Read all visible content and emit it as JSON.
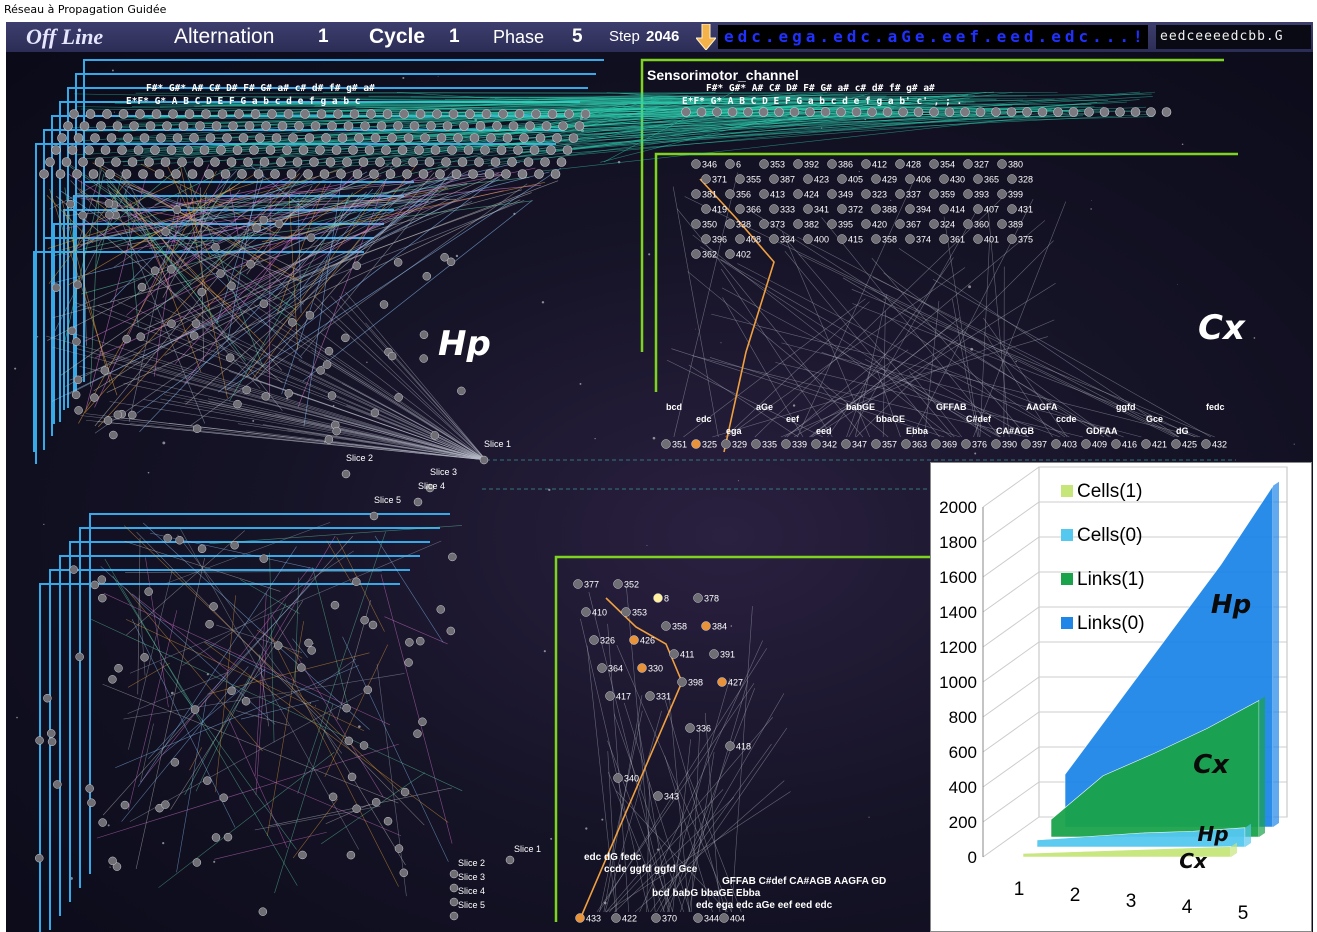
{
  "window": {
    "title": "Réseau à Propagation Guidée"
  },
  "toolbar": {
    "mode": "Off Line",
    "alternation_label": "Alternation",
    "alternation_value": "1",
    "cycle_label": "Cycle",
    "cycle_value": "1",
    "phase_label": "Phase",
    "phase_value": "5",
    "step_label": "Step",
    "step_value": "2046",
    "arrow_icon": "arrow-down-icon",
    "sequence_display": "edc.ega.edc.aGe.eef.eed.edc...!",
    "sequence_short": "eedceeeedcbb.G"
  },
  "network": {
    "hp_label": "Hp",
    "cx_label": "Cx",
    "sensorimotor_label": "Sensorimotor_channel",
    "note_row_left": "F#*   G#*   A#        C#   D#        F#   G#   a#        c#   d#        f#   g#   a#",
    "note_row_left2": "E*F*  G*   A    B    C    D    E    F    G    a    b    c    d    e    f    g    a    b    c",
    "note_row_right": "F#*  G#*  A#       C#   D#       F#   G#   a#        c#   d#       f#   g#   a#",
    "note_row_right2": "E*F*  G*  A   B   C   D   E   F   G   a   b   c   d   e   f   g   a   b'  c'  ,  ;  .",
    "slices_mid": [
      "Slice 1",
      "Slice 2",
      "Slice 3",
      "Slice 4",
      "Slice 5"
    ],
    "slices_bottom": [
      "Slice 1",
      "Slice 2",
      "Slice 3",
      "Slice 4",
      "Slice 5"
    ],
    "cx_top_nodes": [
      {
        "id": "346"
      },
      {
        "id": "6"
      },
      {
        "id": "353"
      },
      {
        "id": "392"
      },
      {
        "id": "386"
      },
      {
        "id": "412"
      },
      {
        "id": "428"
      },
      {
        "id": "354"
      },
      {
        "id": "327"
      },
      {
        "id": "380"
      },
      {
        "id": "371"
      },
      {
        "id": "355"
      },
      {
        "id": "387"
      },
      {
        "id": "423"
      },
      {
        "id": "405"
      },
      {
        "id": "429"
      },
      {
        "id": "406"
      },
      {
        "id": "430"
      },
      {
        "id": "365"
      },
      {
        "id": "328"
      },
      {
        "id": "381"
      },
      {
        "id": "356"
      },
      {
        "id": "413"
      },
      {
        "id": "424"
      },
      {
        "id": "349"
      },
      {
        "id": "323"
      },
      {
        "id": "337"
      },
      {
        "id": "359"
      },
      {
        "id": "393"
      },
      {
        "id": "399"
      },
      {
        "id": "419"
      },
      {
        "id": "366"
      },
      {
        "id": "333"
      },
      {
        "id": "341"
      },
      {
        "id": "372"
      },
      {
        "id": "388"
      },
      {
        "id": "394"
      },
      {
        "id": "414"
      },
      {
        "id": "407"
      },
      {
        "id": "431"
      },
      {
        "id": "350"
      },
      {
        "id": "338"
      },
      {
        "id": "373"
      },
      {
        "id": "382"
      },
      {
        "id": "395"
      },
      {
        "id": "420"
      },
      {
        "id": "367"
      },
      {
        "id": "324"
      },
      {
        "id": "360"
      },
      {
        "id": "389"
      },
      {
        "id": "396"
      },
      {
        "id": "408"
      },
      {
        "id": "334"
      },
      {
        "id": "400"
      },
      {
        "id": "415"
      },
      {
        "id": "358"
      },
      {
        "id": "374"
      },
      {
        "id": "361"
      },
      {
        "id": "401"
      },
      {
        "id": "375"
      },
      {
        "id": "362"
      },
      {
        "id": "402"
      }
    ],
    "cx_row_labels": [
      "bcd",
      "edc",
      "ega",
      "aGe",
      "eef",
      "eed",
      "babGE",
      "bbaGE",
      "Ebba",
      "GFFAB",
      "C#def",
      "CA#AGB",
      "AAGFA",
      "ccde",
      "GDFAA",
      "ggfd",
      "Gce",
      "dG",
      "fedc"
    ],
    "cx_row_nodes": [
      "351",
      "325",
      "329",
      "335",
      "339",
      "342",
      "347",
      "357",
      "363",
      "369",
      "376",
      "390",
      "397",
      "403",
      "409",
      "416",
      "421",
      "425",
      "432"
    ],
    "bottom_nodes": [
      "377",
      "352",
      "8",
      "378",
      "410",
      "353",
      "358",
      "384",
      "326",
      "426",
      "411",
      "391",
      "364",
      "330",
      "398",
      "427",
      "417",
      "331",
      "336",
      "418",
      "340",
      "343"
    ],
    "bottom_labels": [
      "edc dG fedc",
      "ccde ggfd ggfd Gce",
      "GFFAB C#def CA#AGB AAGFA GD",
      "bcd babG bbaGE Ebba",
      "edc ega edc aGe eef eed edc"
    ],
    "bottom_row_nodes": [
      "433",
      "422",
      "370",
      "344",
      "404"
    ]
  },
  "chart_data": {
    "type": "area",
    "title": "",
    "x": [
      1,
      2,
      3,
      4,
      5
    ],
    "ylim": [
      0,
      2000
    ],
    "yticks": [
      0,
      200,
      400,
      600,
      800,
      1000,
      1200,
      1400,
      1600,
      1800,
      2000
    ],
    "legend_position": "top-left",
    "series": [
      {
        "name": "Cells(1)",
        "color": "#c6e67a",
        "region": "Cx",
        "values": [
          20,
          30,
          40,
          50,
          60
        ]
      },
      {
        "name": "Cells(0)",
        "color": "#55c8f0",
        "region": "Hp",
        "values": [
          40,
          60,
          80,
          90,
          110
        ]
      },
      {
        "name": "Links(1)",
        "color": "#1aa34a",
        "region": "Cx",
        "values": [
          100,
          350,
          480,
          620,
          780
        ]
      },
      {
        "name": "Links(0)",
        "color": "#1f86e8",
        "region": "Hp",
        "values": [
          300,
          700,
          1100,
          1500,
          1950
        ]
      }
    ],
    "annotations": [
      {
        "text": "Hp",
        "series": "Links(0)"
      },
      {
        "text": "Cx",
        "series": "Links(1)"
      },
      {
        "text": "Hp",
        "series": "Cells(0)"
      },
      {
        "text": "Cx",
        "series": "Cells(1)"
      }
    ]
  }
}
